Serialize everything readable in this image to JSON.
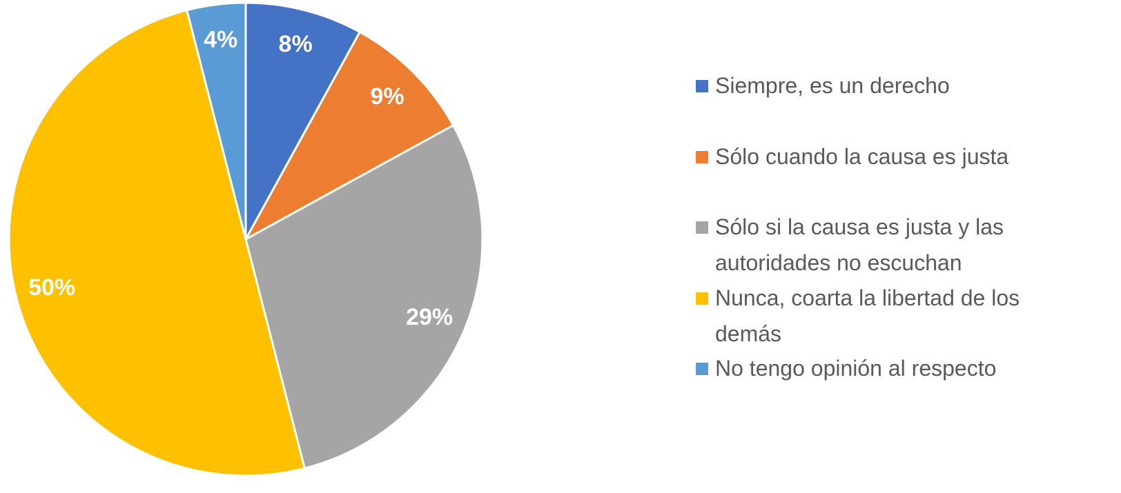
{
  "chart_data": {
    "type": "pie",
    "categories": [
      "Siempre, es un derecho",
      "Sólo cuando la causa es justa",
      "Sólo si la causa es justa y las autoridades no escuchan",
      "Nunca, coarta la libertad de los demás",
      "No tengo opinión al respecto"
    ],
    "values": [
      8,
      9,
      29,
      50,
      4
    ],
    "value_labels": [
      "8%",
      "9%",
      "29%",
      "50%",
      "4%"
    ],
    "colors": [
      "#4472c4",
      "#ed7d31",
      "#a5a5a5",
      "#ffc000",
      "#5b9bd5"
    ],
    "legend": "right"
  }
}
